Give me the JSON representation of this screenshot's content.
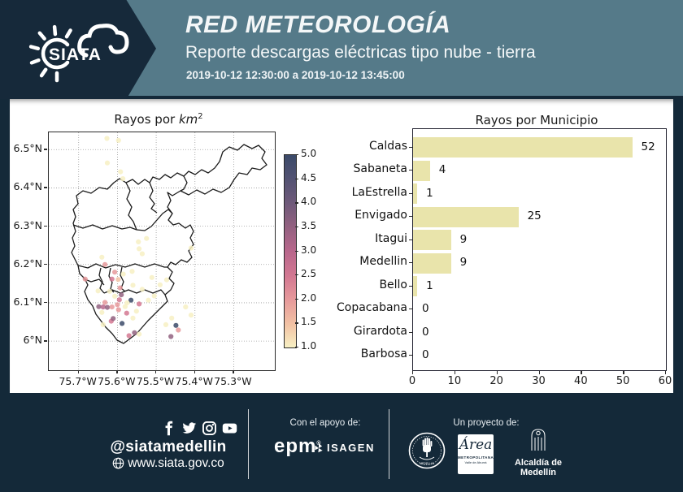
{
  "header": {
    "logo_text": "SIATA",
    "title": "RED METEOROLOGÍA",
    "subtitle": "Reporte descargas eléctricas tipo nube - tierra",
    "date_range": "2019-10-12 12:30:00 a 2019-10-12 13:45:00",
    "teal_color": "#557a89",
    "navy_color": "#16293a"
  },
  "chart_data": [
    {
      "type": "scatter",
      "title_prefix": "Rayos por ",
      "title_unit": "km",
      "title_sup": "2",
      "xticks": [
        {
          "label": "75.7°W",
          "lon": 75.7
        },
        {
          "label": "75.6°W",
          "lon": 75.6
        },
        {
          "label": "75.5°W",
          "lon": 75.5
        },
        {
          "label": "75.4°W",
          "lon": 75.4
        },
        {
          "label": "75.3°W",
          "lon": 75.3
        }
      ],
      "yticks": [
        {
          "label": "6.5°N",
          "lat": 6.5
        },
        {
          "label": "6.4°N",
          "lat": 6.4
        },
        {
          "label": "6.3°N",
          "lat": 6.3
        },
        {
          "label": "6.2°N",
          "lat": 6.2
        },
        {
          "label": "6.1°N",
          "lat": 6.1
        },
        {
          "label": "6°N",
          "lat": 6.0
        }
      ],
      "lon_range": [
        75.777,
        75.194
      ],
      "lat_range": [
        6.545,
        5.924
      ],
      "grid": true,
      "colorbar": {
        "vmin": 1.0,
        "vmax": 5.0,
        "ticks": [
          "5.0",
          "4.5",
          "4.0",
          "3.5",
          "3.0",
          "2.5",
          "2.0",
          "1.5",
          "1.0"
        ],
        "stops": [
          {
            "v": 1.0,
            "color": "#f7f0c3"
          },
          {
            "v": 1.5,
            "color": "#f2c2a4"
          },
          {
            "v": 2.0,
            "color": "#e6999b"
          },
          {
            "v": 2.5,
            "color": "#d37892"
          },
          {
            "v": 3.0,
            "color": "#b8678c"
          },
          {
            "v": 3.5,
            "color": "#926180"
          },
          {
            "v": 4.0,
            "color": "#6f5a7a"
          },
          {
            "v": 4.5,
            "color": "#525272"
          },
          {
            "v": 5.0,
            "color": "#3b4a69"
          }
        ]
      },
      "points": [
        [
          75.627,
          6.529,
          1
        ],
        [
          75.597,
          6.524,
          1
        ],
        [
          75.626,
          6.465,
          1
        ],
        [
          75.592,
          6.442,
          1
        ],
        [
          75.586,
          6.424,
          1
        ],
        [
          75.546,
          6.259,
          1
        ],
        [
          75.525,
          6.268,
          1
        ],
        [
          75.536,
          6.228,
          1
        ],
        [
          75.64,
          6.219,
          1
        ],
        [
          75.544,
          6.241,
          1
        ],
        [
          75.41,
          6.243,
          1
        ],
        [
          75.632,
          6.2,
          2
        ],
        [
          75.607,
          6.18,
          2
        ],
        [
          75.562,
          6.182,
          1
        ],
        [
          75.614,
          6.162,
          2.5
        ],
        [
          75.511,
          6.166,
          1
        ],
        [
          75.473,
          6.16,
          1
        ],
        [
          75.593,
          6.139,
          2
        ],
        [
          75.56,
          6.146,
          1
        ],
        [
          75.536,
          6.135,
          1
        ],
        [
          75.59,
          6.121,
          3.5
        ],
        [
          75.607,
          6.117,
          1
        ],
        [
          75.565,
          6.107,
          5
        ],
        [
          75.544,
          6.097,
          2.5
        ],
        [
          75.632,
          6.101,
          2
        ],
        [
          75.648,
          6.09,
          3.5
        ],
        [
          75.637,
          6.089,
          3
        ],
        [
          75.626,
          6.088,
          3.5
        ],
        [
          75.614,
          6.089,
          2
        ],
        [
          75.597,
          6.082,
          2
        ],
        [
          75.576,
          6.073,
          2.5
        ],
        [
          75.551,
          6.078,
          1
        ],
        [
          75.616,
          6.052,
          2.5
        ],
        [
          75.611,
          6.059,
          3.5
        ],
        [
          75.588,
          6.046,
          5
        ],
        [
          75.637,
          6.043,
          1
        ],
        [
          75.57,
          6.014,
          2.5
        ],
        [
          75.556,
          6.022,
          3.5
        ],
        [
          75.544,
          6.018,
          1
        ],
        [
          75.46,
          6.06,
          1
        ],
        [
          75.475,
          6.043,
          1
        ],
        [
          75.449,
          6.041,
          5
        ],
        [
          75.443,
          6.029,
          2
        ],
        [
          75.462,
          6.012,
          3.5
        ],
        [
          75.424,
          6.089,
          1
        ],
        [
          75.41,
          6.068,
          1
        ],
        [
          75.598,
          6.161,
          1.5
        ],
        [
          75.585,
          6.175,
          1
        ],
        [
          75.65,
          6.131,
          1
        ],
        [
          75.683,
          6.162,
          2
        ],
        [
          75.52,
          6.107,
          1
        ],
        [
          75.505,
          6.118,
          1
        ],
        [
          75.49,
          6.147,
          1
        ],
        [
          75.6,
          6.095,
          2
        ],
        [
          75.58,
          6.09,
          1
        ],
        [
          75.62,
          6.13,
          1
        ],
        [
          75.595,
          6.108,
          2.5
        ],
        [
          75.575,
          6.1,
          1
        ],
        [
          75.64,
          6.075,
          1
        ],
        [
          75.56,
          6.06,
          1
        ]
      ]
    },
    {
      "type": "bar",
      "title": "Rayos por Municipio",
      "categories": [
        "Caldas",
        "Sabaneta",
        "LaEstrella",
        "Envigado",
        "Itagui",
        "Medellin",
        "Bello",
        "Copacabana",
        "Girardota",
        "Barbosa"
      ],
      "values": [
        52,
        4,
        1,
        25,
        9,
        9,
        1,
        0,
        0,
        0
      ],
      "xticks": [
        0,
        10,
        20,
        30,
        40,
        50,
        60
      ],
      "xlim": [
        0,
        60
      ],
      "bar_color": "#e9e4ab",
      "orientation": "horizontal",
      "grid": false
    }
  ],
  "footer": {
    "social": [
      {
        "name": "facebook"
      },
      {
        "name": "twitter"
      },
      {
        "name": "instagram"
      },
      {
        "name": "youtube"
      }
    ],
    "social_handle": "@siatamedellin",
    "website": "www.siata.gov.co",
    "support_label": "Con el apoyo de:",
    "project_label": "Un proyecto de:",
    "logos": {
      "epm": "epm",
      "isagen": "ISAGEN",
      "seal_label": "MEDELLIN",
      "area_line1": "Área",
      "area_line2": "METROPOLITANA",
      "area_line3": "Valle de Aburrá",
      "alcaldia": "Alcaldía de Medellín"
    }
  }
}
